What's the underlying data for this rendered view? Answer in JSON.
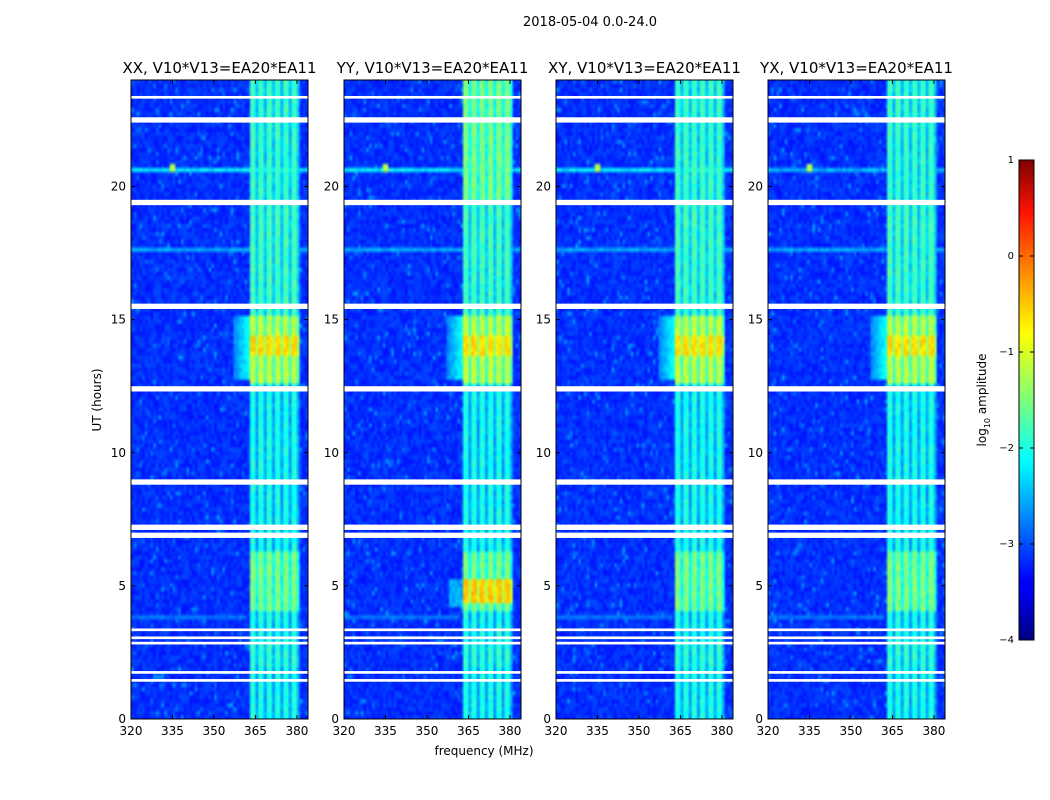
{
  "chart_data": {
    "type": "heatmap",
    "suptitle": "2018-05-04 0.0-24.0",
    "panels": [
      {
        "title": "XX, V10*V13=EA20*EA11"
      },
      {
        "title": "YY, V10*V13=EA20*EA11"
      },
      {
        "title": "XY, V10*V13=EA20*EA11"
      },
      {
        "title": "YX, V10*V13=EA20*EA11"
      }
    ],
    "xlabel": "frequency (MHz)",
    "ylabel": "UT (hours)",
    "xlim": [
      320,
      384
    ],
    "ylim": [
      0,
      24
    ],
    "xticks": [
      320,
      335,
      350,
      365,
      380
    ],
    "xtick_labels": [
      "320",
      "335",
      "350",
      "365",
      "380"
    ],
    "yticks": [
      0,
      5,
      10,
      15,
      20
    ],
    "ytick_labels": [
      "0",
      "5",
      "10",
      "15",
      "20"
    ],
    "colorbar": {
      "label": "log$_{10}$ amplitude",
      "label_main": "log",
      "label_sub": "10",
      "label_rest": " amplitude",
      "range": [
        -4,
        1
      ],
      "ticks": [
        1,
        0,
        -1,
        -2,
        -3,
        -4
      ],
      "tick_labels": [
        "1",
        "0",
        "−1",
        "−2",
        "−3",
        "−4"
      ],
      "colormap": "jet"
    },
    "gap_bands_hours": [
      [
        23.3,
        23.4
      ],
      [
        22.4,
        22.6
      ],
      [
        19.3,
        19.5
      ],
      [
        15.4,
        15.6
      ],
      [
        12.3,
        12.5
      ],
      [
        8.8,
        9.0
      ],
      [
        7.1,
        7.3
      ],
      [
        6.8,
        7.0
      ],
      [
        3.3,
        3.4
      ],
      [
        3.0,
        3.1
      ],
      [
        2.8,
        2.9
      ],
      [
        1.7,
        1.8
      ],
      [
        1.4,
        1.5
      ]
    ],
    "notes": "Strong RFI channels near 362-380 MHz; broadband events near 20.6 h and 17.6 h; peak amplitude near 13.5-15 h."
  }
}
